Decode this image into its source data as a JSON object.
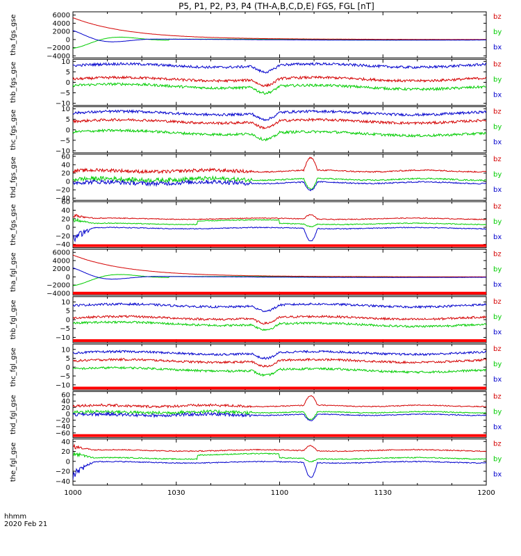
{
  "chart_data": {
    "type": "line",
    "title": "P5, P1, P2, P3, P4 (TH-A,B,C,D,E) FGS, FGL [nT]",
    "footer": {
      "line1": "hhmm",
      "line2": "2020 Feb 21"
    },
    "x_ticks": [
      "1000",
      "1030",
      "1100",
      "1130",
      "1200"
    ],
    "x_tick_minutes": [
      0,
      30,
      60,
      90,
      120
    ],
    "x_range_minutes": [
      0,
      120
    ],
    "colors": {
      "bz": "#d40000",
      "by": "#00cc00",
      "bx": "#0000cc"
    },
    "panels": [
      {
        "ylabel": "tha_fgs_gse",
        "ylim": [
          -4500,
          6800
        ],
        "yticks": [
          6000,
          4000,
          2000,
          0,
          -2000,
          -4000
        ],
        "yticklabels": [
          "6000",
          "4000",
          "2000",
          "0",
          "−2000",
          "−4000"
        ],
        "kind": "decay",
        "legend": [
          "bz",
          "by",
          "bx"
        ]
      },
      {
        "ylabel": "thb_fgs_gse",
        "ylim": [
          -11,
          11
        ],
        "yticks": [
          10,
          5,
          0,
          -5,
          -10
        ],
        "yticklabels": [
          "10",
          "5",
          "0",
          "−5",
          "−10"
        ],
        "kind": "quiet",
        "base": {
          "bx": 8,
          "bz": 1.5,
          "by": -1.5
        },
        "legend": [
          "bz",
          "by",
          "bx"
        ]
      },
      {
        "ylabel": "thc_fgs_gse",
        "ylim": [
          -11,
          11
        ],
        "yticks": [
          10,
          5,
          0,
          -5,
          -10
        ],
        "yticklabels": [
          "10",
          "5",
          "0",
          "−5",
          "−10"
        ],
        "kind": "quiet",
        "base": {
          "bx": 8,
          "bz": 4,
          "by": -1
        },
        "legend": [
          "bz",
          "by",
          "bx"
        ]
      },
      {
        "ylabel": "thd_fgs_gse",
        "ylim": [
          -45,
          65
        ],
        "yticks": [
          60,
          40,
          20,
          0,
          -20,
          -40
        ],
        "yticklabels": [
          "60",
          "40",
          "20",
          "0",
          "−20",
          "−40"
        ],
        "kind": "active",
        "base": {
          "bz": 25,
          "by": 5,
          "bx": -3
        },
        "legend": [
          "bz",
          "by",
          "bx"
        ]
      },
      {
        "ylabel": "the_fgs_gse",
        "ylim": [
          -48,
          60
        ],
        "yticks": [
          60,
          40,
          20,
          0,
          -20,
          -40
        ],
        "yticklabels": [
          "60",
          "40",
          "20",
          "0",
          "−20",
          "−40"
        ],
        "kind": "edge",
        "base": {
          "bz": 20,
          "by": 8,
          "bx": -2
        },
        "legend": [
          "bz",
          "by",
          "bx"
        ]
      },
      {
        "ylabel": "tha_fgl_gse",
        "ylim": [
          -4500,
          6800
        ],
        "yticks": [
          6000,
          4000,
          2000,
          0,
          -2000,
          -4000
        ],
        "yticklabels": [
          "6000",
          "4000",
          "2000",
          "0",
          "−2000",
          "−4000"
        ],
        "kind": "decay",
        "legend": [
          "bz",
          "by",
          "bx"
        ]
      },
      {
        "ylabel": "thb_fgl_gse",
        "ylim": [
          -13,
          13
        ],
        "yticks": [
          10,
          5,
          0,
          -5,
          -10
        ],
        "yticklabels": [
          "10",
          "5",
          "0",
          "−5",
          "−10"
        ],
        "kind": "quiet",
        "base": {
          "bx": 8,
          "bz": 1,
          "by": -2
        },
        "legend": [
          "bz",
          "by",
          "bx"
        ]
      },
      {
        "ylabel": "thc_fgl_gse",
        "ylim": [
          -13,
          13
        ],
        "yticks": [
          10,
          5,
          0,
          -5,
          -10
        ],
        "yticklabels": [
          "10",
          "5",
          "0",
          "−5",
          "−10"
        ],
        "kind": "quiet",
        "base": {
          "bx": 8,
          "bz": 3.5,
          "by": -1
        },
        "legend": [
          "bz",
          "by",
          "bx"
        ]
      },
      {
        "ylabel": "thd_fgl_gse",
        "ylim": [
          -75,
          70
        ],
        "yticks": [
          60,
          40,
          20,
          0,
          -20,
          -40,
          -60
        ],
        "yticklabels": [
          "60",
          "40",
          "20",
          "0",
          "−20",
          "−40",
          "−60"
        ],
        "kind": "active",
        "base": {
          "bz": 25,
          "by": 5,
          "bx": -3
        },
        "legend": [
          "bz",
          "by",
          "bx"
        ]
      },
      {
        "ylabel": "the_fgl_gse",
        "ylim": [
          -48,
          45
        ],
        "yticks": [
          40,
          20,
          0,
          -20,
          -40
        ],
        "yticklabels": [
          "40",
          "20",
          "0",
          "−20",
          "−40"
        ],
        "kind": "edge",
        "base": {
          "bz": 22,
          "by": 6,
          "bx": -2
        },
        "legend": [
          "bz",
          "by",
          "bx"
        ]
      }
    ]
  }
}
